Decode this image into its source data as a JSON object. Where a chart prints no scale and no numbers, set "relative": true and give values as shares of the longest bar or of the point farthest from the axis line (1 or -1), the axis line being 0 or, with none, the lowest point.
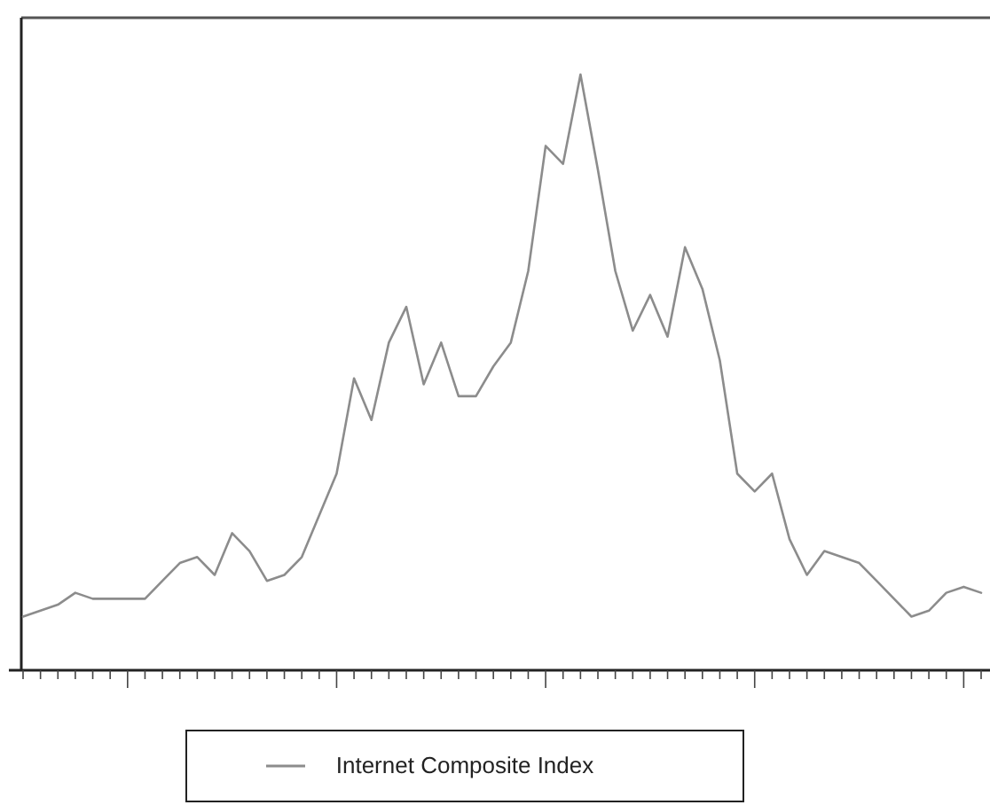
{
  "chart_data": {
    "type": "line",
    "relative": true,
    "categories": [
      null,
      null,
      null,
      null,
      null,
      null,
      null,
      null,
      null,
      null,
      null,
      null,
      null,
      null,
      null,
      null,
      null,
      null,
      null,
      null,
      null,
      null,
      null,
      null,
      null,
      null,
      null,
      null,
      null,
      null,
      null,
      null,
      null,
      null,
      null,
      null,
      null,
      null,
      null,
      null,
      null,
      null,
      null,
      null,
      null,
      null,
      null,
      null,
      null,
      null,
      null,
      null,
      null,
      null,
      null,
      null
    ],
    "series": [
      {
        "name": "Internet Composite Index",
        "color": "#8c8c8c",
        "values": [
          0.09,
          0.1,
          0.11,
          0.13,
          0.12,
          0.12,
          0.12,
          0.12,
          0.15,
          0.18,
          0.19,
          0.16,
          0.23,
          0.2,
          0.15,
          0.16,
          0.19,
          0.26,
          0.33,
          0.49,
          0.42,
          0.55,
          0.61,
          0.48,
          0.55,
          0.46,
          0.46,
          0.51,
          0.55,
          0.67,
          0.88,
          0.85,
          1,
          0.84,
          0.67,
          0.57,
          0.63,
          0.56,
          0.71,
          0.64,
          0.52,
          0.33,
          0.3,
          0.33,
          0.22,
          0.16,
          0.2,
          0.19,
          0.18,
          0.15,
          0.12,
          0.09,
          0.1,
          0.13,
          0.14,
          0.13
        ]
      }
    ],
    "legend": "bottom",
    "grid": false,
    "marker": "none",
    "line_style": "solid"
  }
}
